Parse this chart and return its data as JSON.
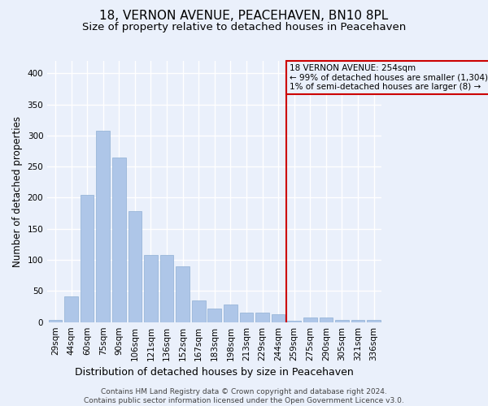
{
  "title": "18, VERNON AVENUE, PEACEHAVEN, BN10 8PL",
  "subtitle": "Size of property relative to detached houses in Peacehaven",
  "xlabel": "Distribution of detached houses by size in Peacehaven",
  "ylabel": "Number of detached properties",
  "categories": [
    "29sqm",
    "44sqm",
    "60sqm",
    "75sqm",
    "90sqm",
    "106sqm",
    "121sqm",
    "136sqm",
    "152sqm",
    "167sqm",
    "183sqm",
    "198sqm",
    "213sqm",
    "229sqm",
    "244sqm",
    "259sqm",
    "275sqm",
    "290sqm",
    "305sqm",
    "321sqm",
    "336sqm"
  ],
  "values": [
    3,
    42,
    205,
    308,
    265,
    178,
    108,
    108,
    90,
    35,
    22,
    28,
    15,
    15,
    12,
    2,
    7,
    7,
    3,
    3,
    3
  ],
  "bar_color": "#aec6e8",
  "bar_edge_color": "#8fafd4",
  "background_color": "#eaf0fb",
  "grid_color": "#ffffff",
  "vline_color": "#cc0000",
  "annotation_text": "18 VERNON AVENUE: 254sqm\n← 99% of detached houses are smaller (1,304)\n1% of semi-detached houses are larger (8) →",
  "footer_text": "Contains HM Land Registry data © Crown copyright and database right 2024.\nContains public sector information licensed under the Open Government Licence v3.0.",
  "ylim": [
    0,
    420
  ],
  "yticks": [
    0,
    50,
    100,
    150,
    200,
    250,
    300,
    350,
    400
  ],
  "title_fontsize": 11,
  "subtitle_fontsize": 9.5,
  "xlabel_fontsize": 9,
  "ylabel_fontsize": 8.5,
  "tick_fontsize": 7.5,
  "footer_fontsize": 6.5,
  "annotation_fontsize": 7.5,
  "vline_pos": 14.5
}
